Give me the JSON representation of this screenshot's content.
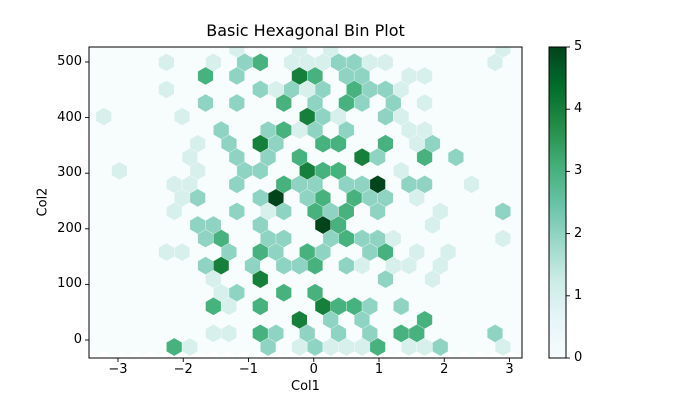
{
  "chart_data": {
    "type": "hexbin",
    "title": "Basic Hexagonal Bin Plot",
    "xlabel": "Col1",
    "ylabel": "Col2",
    "x_ticks": [
      "−3",
      "−2",
      "−1",
      "0",
      "1",
      "2",
      "3"
    ],
    "y_ticks": [
      "0",
      "100",
      "200",
      "300",
      "400",
      "500"
    ],
    "x_range": [
      -3.4,
      3.2
    ],
    "y_range": [
      -32,
      527
    ],
    "grid_on": false,
    "colorbar": {
      "ticks": [
        "0",
        "1",
        "2",
        "3",
        "4",
        "5"
      ],
      "vmin": 0,
      "vmax": 5,
      "colormap": "BuGn",
      "gradient_stops": [
        "#f7fcfd",
        "#e5f5f9",
        "#ccece6",
        "#99d8c9",
        "#66c2a4",
        "#41ae76",
        "#238b45",
        "#006d2c",
        "#00441b"
      ]
    },
    "count_colors": {
      "0": "#f7fcfd",
      "1": "#d7f0ec",
      "2": "#8fd4c2",
      "3": "#48b27f",
      "4": "#157f3b",
      "5": "#00441b"
    },
    "hex_grid": {
      "rows": 23,
      "cols": 28,
      "note": "count of points per hexagonal bin, row 0 = top of plot (y≈520), col 0 = left (x≈-3.3); odd rows offset right by half a hex",
      "counts": [
        "0000000001000101000000000010",
        "0000100102301112211000000100",
        "0000000302000430220011000000",
        "0000100000212120322100000000",
        "0000000202003020320201000000",
        "1000010000000421002100000000",
        "0000000020023120200011000000",
        "0000001020420033003012000000",
        "0000001002020300042003020000",
        "0100001002200433000100000000",
        "0000011002003220225022001000",
        "0000012000250230322010000000",
        "0000010002012032302000100020",
        "0000002200200053000001000000",
        "0000000230022002322100000010",
        "0000110020320320023010100000",
        "0000000240202230210110100000",
        "0000000100400000002001000000",
        "0000000012003030000000000000",
        "0000000310300043320200000000",
        "0000000000000402020003000000",
        "0000000110320202020330000200",
        "0000031000020121113011200010"
      ]
    }
  }
}
